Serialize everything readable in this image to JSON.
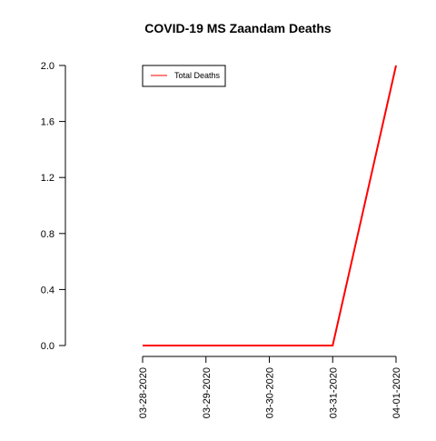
{
  "chart_data": {
    "type": "line",
    "title": "COVID-19 MS Zaandam Deaths",
    "xlabel": "",
    "ylabel": "",
    "categories": [
      "03-28-2020",
      "03-29-2020",
      "03-30-2020",
      "03-31-2020",
      "04-01-2020"
    ],
    "series": [
      {
        "name": "Total Deaths",
        "color": "#ff0000",
        "values": [
          0,
          0,
          0,
          0,
          2
        ]
      }
    ],
    "ylim": [
      0,
      2
    ],
    "yticks": [
      0.0,
      0.4,
      0.8,
      1.2,
      1.6,
      2.0
    ],
    "ytick_labels": [
      "0.0",
      "0.4",
      "0.8",
      "1.2",
      "1.6",
      "2.0"
    ],
    "legend_position": "top-left",
    "grid": false
  }
}
